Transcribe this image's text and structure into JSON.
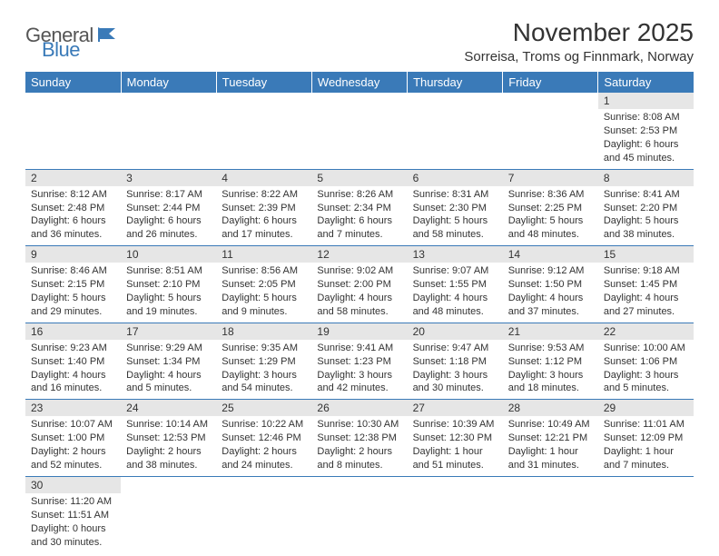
{
  "branding": {
    "word1": "General",
    "word2": "Blue"
  },
  "title": "November 2025",
  "location": "Sorreisa, Troms og Finnmark, Norway",
  "colors": {
    "accent": "#3a7ab8",
    "dayHeaderBg": "#e6e6e6",
    "text": "#333333",
    "bg": "#ffffff"
  },
  "day_names": [
    "Sunday",
    "Monday",
    "Tuesday",
    "Wednesday",
    "Thursday",
    "Friday",
    "Saturday"
  ],
  "weeks": [
    [
      null,
      null,
      null,
      null,
      null,
      null,
      {
        "n": "1",
        "sr": "Sunrise: 8:08 AM",
        "ss": "Sunset: 2:53 PM",
        "dl": "Daylight: 6 hours and 45 minutes."
      }
    ],
    [
      {
        "n": "2",
        "sr": "Sunrise: 8:12 AM",
        "ss": "Sunset: 2:48 PM",
        "dl": "Daylight: 6 hours and 36 minutes."
      },
      {
        "n": "3",
        "sr": "Sunrise: 8:17 AM",
        "ss": "Sunset: 2:44 PM",
        "dl": "Daylight: 6 hours and 26 minutes."
      },
      {
        "n": "4",
        "sr": "Sunrise: 8:22 AM",
        "ss": "Sunset: 2:39 PM",
        "dl": "Daylight: 6 hours and 17 minutes."
      },
      {
        "n": "5",
        "sr": "Sunrise: 8:26 AM",
        "ss": "Sunset: 2:34 PM",
        "dl": "Daylight: 6 hours and 7 minutes."
      },
      {
        "n": "6",
        "sr": "Sunrise: 8:31 AM",
        "ss": "Sunset: 2:30 PM",
        "dl": "Daylight: 5 hours and 58 minutes."
      },
      {
        "n": "7",
        "sr": "Sunrise: 8:36 AM",
        "ss": "Sunset: 2:25 PM",
        "dl": "Daylight: 5 hours and 48 minutes."
      },
      {
        "n": "8",
        "sr": "Sunrise: 8:41 AM",
        "ss": "Sunset: 2:20 PM",
        "dl": "Daylight: 5 hours and 38 minutes."
      }
    ],
    [
      {
        "n": "9",
        "sr": "Sunrise: 8:46 AM",
        "ss": "Sunset: 2:15 PM",
        "dl": "Daylight: 5 hours and 29 minutes."
      },
      {
        "n": "10",
        "sr": "Sunrise: 8:51 AM",
        "ss": "Sunset: 2:10 PM",
        "dl": "Daylight: 5 hours and 19 minutes."
      },
      {
        "n": "11",
        "sr": "Sunrise: 8:56 AM",
        "ss": "Sunset: 2:05 PM",
        "dl": "Daylight: 5 hours and 9 minutes."
      },
      {
        "n": "12",
        "sr": "Sunrise: 9:02 AM",
        "ss": "Sunset: 2:00 PM",
        "dl": "Daylight: 4 hours and 58 minutes."
      },
      {
        "n": "13",
        "sr": "Sunrise: 9:07 AM",
        "ss": "Sunset: 1:55 PM",
        "dl": "Daylight: 4 hours and 48 minutes."
      },
      {
        "n": "14",
        "sr": "Sunrise: 9:12 AM",
        "ss": "Sunset: 1:50 PM",
        "dl": "Daylight: 4 hours and 37 minutes."
      },
      {
        "n": "15",
        "sr": "Sunrise: 9:18 AM",
        "ss": "Sunset: 1:45 PM",
        "dl": "Daylight: 4 hours and 27 minutes."
      }
    ],
    [
      {
        "n": "16",
        "sr": "Sunrise: 9:23 AM",
        "ss": "Sunset: 1:40 PM",
        "dl": "Daylight: 4 hours and 16 minutes."
      },
      {
        "n": "17",
        "sr": "Sunrise: 9:29 AM",
        "ss": "Sunset: 1:34 PM",
        "dl": "Daylight: 4 hours and 5 minutes."
      },
      {
        "n": "18",
        "sr": "Sunrise: 9:35 AM",
        "ss": "Sunset: 1:29 PM",
        "dl": "Daylight: 3 hours and 54 minutes."
      },
      {
        "n": "19",
        "sr": "Sunrise: 9:41 AM",
        "ss": "Sunset: 1:23 PM",
        "dl": "Daylight: 3 hours and 42 minutes."
      },
      {
        "n": "20",
        "sr": "Sunrise: 9:47 AM",
        "ss": "Sunset: 1:18 PM",
        "dl": "Daylight: 3 hours and 30 minutes."
      },
      {
        "n": "21",
        "sr": "Sunrise: 9:53 AM",
        "ss": "Sunset: 1:12 PM",
        "dl": "Daylight: 3 hours and 18 minutes."
      },
      {
        "n": "22",
        "sr": "Sunrise: 10:00 AM",
        "ss": "Sunset: 1:06 PM",
        "dl": "Daylight: 3 hours and 5 minutes."
      }
    ],
    [
      {
        "n": "23",
        "sr": "Sunrise: 10:07 AM",
        "ss": "Sunset: 1:00 PM",
        "dl": "Daylight: 2 hours and 52 minutes."
      },
      {
        "n": "24",
        "sr": "Sunrise: 10:14 AM",
        "ss": "Sunset: 12:53 PM",
        "dl": "Daylight: 2 hours and 38 minutes."
      },
      {
        "n": "25",
        "sr": "Sunrise: 10:22 AM",
        "ss": "Sunset: 12:46 PM",
        "dl": "Daylight: 2 hours and 24 minutes."
      },
      {
        "n": "26",
        "sr": "Sunrise: 10:30 AM",
        "ss": "Sunset: 12:38 PM",
        "dl": "Daylight: 2 hours and 8 minutes."
      },
      {
        "n": "27",
        "sr": "Sunrise: 10:39 AM",
        "ss": "Sunset: 12:30 PM",
        "dl": "Daylight: 1 hour and 51 minutes."
      },
      {
        "n": "28",
        "sr": "Sunrise: 10:49 AM",
        "ss": "Sunset: 12:21 PM",
        "dl": "Daylight: 1 hour and 31 minutes."
      },
      {
        "n": "29",
        "sr": "Sunrise: 11:01 AM",
        "ss": "Sunset: 12:09 PM",
        "dl": "Daylight: 1 hour and 7 minutes."
      }
    ],
    [
      {
        "n": "30",
        "sr": "Sunrise: 11:20 AM",
        "ss": "Sunset: 11:51 AM",
        "dl": "Daylight: 0 hours and 30 minutes."
      },
      null,
      null,
      null,
      null,
      null,
      null
    ]
  ]
}
